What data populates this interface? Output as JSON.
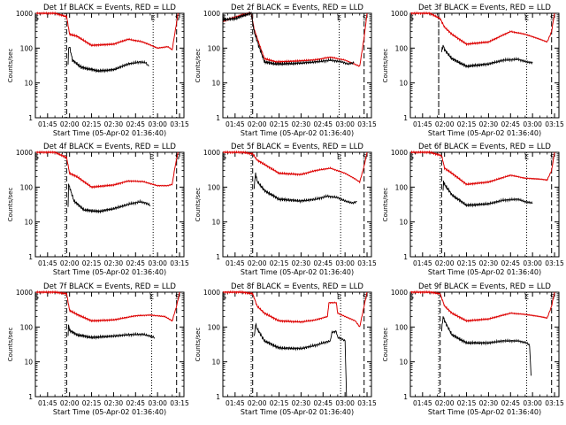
{
  "chart_data": {
    "type": "line",
    "scale": "log",
    "ylim": [
      1,
      1000
    ],
    "ylabel": "Counts/sec",
    "xlabel": "Start Time (05-Apr-02 01:36:40)",
    "x_range_minutes": [
      96.67,
      198
    ],
    "x_ticks": [
      {
        "t": 105,
        "label": "01:45"
      },
      {
        "t": 120,
        "label": "02:00"
      },
      {
        "t": 135,
        "label": "02:15"
      },
      {
        "t": 150,
        "label": "02:30"
      },
      {
        "t": 165,
        "label": "02:45"
      },
      {
        "t": 180,
        "label": "03:00"
      },
      {
        "t": 195,
        "label": "03:15"
      }
    ],
    "y_ticks": [
      {
        "v": 1,
        "label": "1"
      },
      {
        "v": 10,
        "label": "10"
      },
      {
        "v": 100,
        "label": "100"
      },
      {
        "v": 1000,
        "label": "1000"
      }
    ],
    "series_colors": {
      "events": "#000000",
      "lld": "#dd0000"
    },
    "panels": [
      {
        "title": "Det 1f BLACK = Events, RED = LLD",
        "markers": [
          {
            "t": 97.5,
            "label": "S"
          },
          {
            "t": 177,
            "label": "E"
          },
          {
            "t": 193.5,
            "label": "S"
          }
        ],
        "dash_lines": [
          118,
          193
        ],
        "dot_lines": [
          117,
          177
        ],
        "events": [
          [
            119,
            30
          ],
          [
            119.3,
            100
          ],
          [
            120,
            110
          ],
          [
            122,
            45
          ],
          [
            128,
            28
          ],
          [
            140,
            22
          ],
          [
            150,
            24
          ],
          [
            160,
            35
          ],
          [
            168,
            40
          ],
          [
            172,
            38
          ],
          [
            174,
            30
          ]
        ],
        "lld": [
          [
            97,
            1000
          ],
          [
            110,
            1000
          ],
          [
            118,
            800
          ],
          [
            120,
            250
          ],
          [
            125,
            220
          ],
          [
            135,
            120
          ],
          [
            150,
            130
          ],
          [
            160,
            180
          ],
          [
            170,
            150
          ],
          [
            180,
            100
          ],
          [
            187,
            110
          ],
          [
            190,
            90
          ],
          [
            192,
            300
          ],
          [
            194,
            1000
          ]
        ]
      },
      {
        "title": "Det 2f BLACK = Events, RED = LLD",
        "markers": [
          {
            "t": 97.5,
            "label": "S"
          },
          {
            "t": 176,
            "label": "E"
          },
          {
            "t": 193.5,
            "label": "S"
          }
        ],
        "dash_lines": [
          117,
          193
        ],
        "dot_lines": [
          116,
          176
        ],
        "events": [
          [
            97,
            650
          ],
          [
            105,
            700
          ],
          [
            112,
            900
          ],
          [
            116,
            1000
          ],
          [
            118,
            300
          ],
          [
            121,
            120
          ],
          [
            125,
            40
          ],
          [
            133,
            35
          ],
          [
            145,
            36
          ],
          [
            160,
            40
          ],
          [
            170,
            45
          ],
          [
            178,
            40
          ],
          [
            182,
            35
          ],
          [
            186,
            38
          ]
        ],
        "lld": [
          [
            97,
            600
          ],
          [
            110,
            900
          ],
          [
            116,
            1000
          ],
          [
            118,
            350
          ],
          [
            121,
            150
          ],
          [
            125,
            50
          ],
          [
            133,
            40
          ],
          [
            145,
            42
          ],
          [
            160,
            46
          ],
          [
            170,
            55
          ],
          [
            180,
            45
          ],
          [
            190,
            30
          ],
          [
            193,
            200
          ],
          [
            195,
            1000
          ]
        ]
      },
      {
        "title": "Det 3f BLACK = Events, RED = LLD",
        "markers": [
          {
            "t": 97.5,
            "label": "S"
          },
          {
            "t": 176,
            "label": "E"
          },
          {
            "t": 193.5,
            "label": "S"
          }
        ],
        "dash_lines": [
          116,
          193
        ],
        "dot_lines": [
          116,
          176
        ],
        "events": [
          [
            118,
            80
          ],
          [
            119,
            120
          ],
          [
            120,
            90
          ],
          [
            125,
            50
          ],
          [
            135,
            30
          ],
          [
            150,
            35
          ],
          [
            160,
            45
          ],
          [
            170,
            48
          ],
          [
            176,
            40
          ],
          [
            180,
            38
          ]
        ],
        "lld": [
          [
            97,
            1000
          ],
          [
            110,
            1000
          ],
          [
            117,
            700
          ],
          [
            120,
            400
          ],
          [
            125,
            250
          ],
          [
            135,
            130
          ],
          [
            150,
            150
          ],
          [
            165,
            300
          ],
          [
            175,
            250
          ],
          [
            185,
            180
          ],
          [
            190,
            150
          ],
          [
            193,
            300
          ],
          [
            195,
            1000
          ]
        ]
      },
      {
        "title": "Det 4f BLACK = Events, RED = LLD",
        "markers": [
          {
            "t": 97.5,
            "label": "S"
          },
          {
            "t": 176,
            "label": "E"
          },
          {
            "t": 193.5,
            "label": "S"
          }
        ],
        "dash_lines": [
          118,
          193
        ],
        "dot_lines": [
          117,
          177
        ],
        "events": [
          [
            119,
            30
          ],
          [
            119.3,
            120
          ],
          [
            120,
            100
          ],
          [
            123,
            40
          ],
          [
            130,
            22
          ],
          [
            140,
            20
          ],
          [
            150,
            24
          ],
          [
            160,
            32
          ],
          [
            168,
            38
          ],
          [
            172,
            35
          ],
          [
            175,
            30
          ]
        ],
        "lld": [
          [
            97,
            1000
          ],
          [
            110,
            1000
          ],
          [
            118,
            700
          ],
          [
            120,
            250
          ],
          [
            125,
            200
          ],
          [
            135,
            100
          ],
          [
            150,
            115
          ],
          [
            160,
            150
          ],
          [
            170,
            145
          ],
          [
            180,
            110
          ],
          [
            187,
            110
          ],
          [
            190,
            120
          ],
          [
            192,
            400
          ],
          [
            194,
            1000
          ]
        ]
      },
      {
        "title": "Det 5f BLACK = Events, RED = LLD",
        "markers": [
          {
            "t": 97.5,
            "label": "S"
          },
          {
            "t": 176,
            "label": "E"
          },
          {
            "t": 193.5,
            "label": "S"
          }
        ],
        "dash_lines": [
          117,
          193
        ],
        "dot_lines": [
          116,
          177
        ],
        "events": [
          [
            118,
            100
          ],
          [
            119,
            250
          ],
          [
            120,
            150
          ],
          [
            125,
            80
          ],
          [
            135,
            45
          ],
          [
            150,
            40
          ],
          [
            160,
            45
          ],
          [
            168,
            55
          ],
          [
            175,
            50
          ],
          [
            180,
            40
          ],
          [
            185,
            35
          ],
          [
            188,
            38
          ]
        ],
        "lld": [
          [
            97,
            1000
          ],
          [
            110,
            1000
          ],
          [
            117,
            900
          ],
          [
            120,
            600
          ],
          [
            125,
            450
          ],
          [
            135,
            250
          ],
          [
            150,
            230
          ],
          [
            160,
            300
          ],
          [
            170,
            350
          ],
          [
            180,
            250
          ],
          [
            187,
            170
          ],
          [
            190,
            140
          ],
          [
            193,
            400
          ],
          [
            195,
            1000
          ]
        ]
      },
      {
        "title": "Det 6f BLACK = Events, RED = LLD",
        "markers": [
          {
            "t": 97.5,
            "label": "S"
          },
          {
            "t": 176,
            "label": "E"
          },
          {
            "t": 193.5,
            "label": "S"
          }
        ],
        "dash_lines": [
          118,
          193
        ],
        "dot_lines": [
          117,
          176
        ],
        "events": [
          [
            119,
            80
          ],
          [
            119.3,
            150
          ],
          [
            120,
            120
          ],
          [
            125,
            60
          ],
          [
            135,
            30
          ],
          [
            150,
            33
          ],
          [
            160,
            42
          ],
          [
            170,
            45
          ],
          [
            175,
            38
          ],
          [
            180,
            35
          ]
        ],
        "lld": [
          [
            97,
            1000
          ],
          [
            110,
            1000
          ],
          [
            118,
            800
          ],
          [
            120,
            350
          ],
          [
            125,
            250
          ],
          [
            135,
            120
          ],
          [
            150,
            140
          ],
          [
            165,
            220
          ],
          [
            175,
            180
          ],
          [
            185,
            170
          ],
          [
            190,
            160
          ],
          [
            193,
            300
          ],
          [
            195,
            1000
          ]
        ]
      },
      {
        "title": "Det 7f BLACK = Events, RED = LLD",
        "markers": [
          {
            "t": 97.5,
            "label": "S"
          },
          {
            "t": 176,
            "label": "E"
          },
          {
            "t": 193.5,
            "label": "S"
          }
        ],
        "dash_lines": [
          118,
          193
        ],
        "dot_lines": [
          117,
          176
        ],
        "events": [
          [
            119,
            50
          ],
          [
            119.3,
            120
          ],
          [
            120,
            80
          ],
          [
            125,
            60
          ],
          [
            135,
            50
          ],
          [
            150,
            55
          ],
          [
            160,
            60
          ],
          [
            170,
            62
          ],
          [
            175,
            55
          ],
          [
            178,
            50
          ]
        ],
        "lld": [
          [
            97,
            1000
          ],
          [
            110,
            1000
          ],
          [
            118,
            900
          ],
          [
            120,
            300
          ],
          [
            125,
            230
          ],
          [
            135,
            150
          ],
          [
            150,
            160
          ],
          [
            165,
            210
          ],
          [
            175,
            220
          ],
          [
            185,
            200
          ],
          [
            190,
            150
          ],
          [
            193,
            400
          ],
          [
            195,
            1000
          ]
        ]
      },
      {
        "title": "Det 8f BLACK = Events, RED = LLD",
        "markers": [
          {
            "t": 97.5,
            "label": "S"
          },
          {
            "t": 176,
            "label": "E"
          },
          {
            "t": 193.5,
            "label": "S"
          }
        ],
        "dash_lines": [
          117,
          193
        ],
        "dot_lines": [
          116,
          177
        ],
        "events": [
          [
            118,
            50
          ],
          [
            119,
            120
          ],
          [
            120,
            90
          ],
          [
            125,
            40
          ],
          [
            135,
            25
          ],
          [
            150,
            24
          ],
          [
            160,
            30
          ],
          [
            165,
            35
          ],
          [
            170,
            40
          ],
          [
            171,
            70
          ],
          [
            174,
            75
          ],
          [
            175,
            50
          ],
          [
            178,
            45
          ],
          [
            180,
            40
          ],
          [
            181,
            1
          ]
        ],
        "lld": [
          [
            97,
            1000
          ],
          [
            110,
            1000
          ],
          [
            117,
            900
          ],
          [
            120,
            400
          ],
          [
            125,
            250
          ],
          [
            135,
            150
          ],
          [
            150,
            140
          ],
          [
            160,
            160
          ],
          [
            168,
            200
          ],
          [
            169,
            500
          ],
          [
            174,
            500
          ],
          [
            175,
            250
          ],
          [
            180,
            200
          ],
          [
            187,
            150
          ],
          [
            190,
            100
          ],
          [
            193,
            400
          ],
          [
            195,
            1000
          ]
        ]
      },
      {
        "title": "Det 9f BLACK = Events, RED = LLD",
        "markers": [
          {
            "t": 97.5,
            "label": "S"
          },
          {
            "t": 176,
            "label": "E"
          },
          {
            "t": 193.5,
            "label": "S"
          }
        ],
        "dash_lines": [
          117,
          193
        ],
        "dot_lines": [
          116,
          176
        ],
        "events": [
          [
            118,
            80
          ],
          [
            119,
            200
          ],
          [
            120,
            150
          ],
          [
            125,
            60
          ],
          [
            135,
            35
          ],
          [
            150,
            35
          ],
          [
            160,
            40
          ],
          [
            170,
            40
          ],
          [
            176,
            35
          ],
          [
            178,
            30
          ],
          [
            179,
            4
          ]
        ],
        "lld": [
          [
            97,
            1000
          ],
          [
            110,
            1000
          ],
          [
            117,
            900
          ],
          [
            120,
            400
          ],
          [
            125,
            250
          ],
          [
            135,
            150
          ],
          [
            150,
            170
          ],
          [
            165,
            250
          ],
          [
            175,
            230
          ],
          [
            185,
            200
          ],
          [
            190,
            180
          ],
          [
            193,
            400
          ],
          [
            195,
            1000
          ]
        ]
      }
    ]
  }
}
